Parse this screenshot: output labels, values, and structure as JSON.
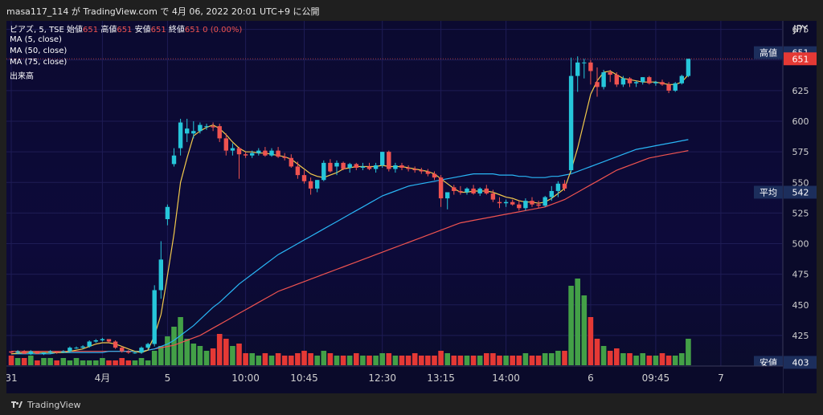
{
  "header": {
    "title": "masa117_114 が TradingView.com で 4月 06, 2022 20:01 UTC+9 に公開"
  },
  "legend": {
    "symbol": "ピアズ, 5, TSE",
    "open_label": "始値",
    "open_value": "651",
    "high_label": "高値",
    "high_value": "651",
    "low_label": "安値",
    "low_value": "651",
    "close_label": "終値",
    "close_value": "651",
    "change": "0 (0.00%)",
    "ma5": "MA (5, close)",
    "ma50": "MA (50, close)",
    "ma75": "MA (75, close)",
    "volume": "出来高"
  },
  "footer": {
    "brand": "TradingView"
  },
  "colors": {
    "up": "#26c6da",
    "down": "#ef5350",
    "ma5": "#f2c94c",
    "ma50": "#29b6f6",
    "ma75": "#ef5350",
    "vol_up": "#43a047",
    "vol_down": "#e53935",
    "label_bg": "#1c2e5c"
  },
  "chart_data": {
    "type": "candlestick",
    "currency": "JPY",
    "y_ticks": [
      675,
      650,
      625,
      600,
      575,
      550,
      525,
      500,
      475,
      450,
      425
    ],
    "ylim": [
      400,
      682
    ],
    "x_ticks": [
      {
        "label": "31",
        "i": 0
      },
      {
        "label": "4月",
        "i": 14
      },
      {
        "label": "5",
        "i": 24
      },
      {
        "label": "10:00",
        "i": 36
      },
      {
        "label": "10:45",
        "i": 45
      },
      {
        "label": "12:30",
        "i": 57
      },
      {
        "label": "13:15",
        "i": 66
      },
      {
        "label": "14:00",
        "i": 76
      },
      {
        "label": "6",
        "i": 89
      },
      {
        "label": "09:45",
        "i": 99
      },
      {
        "label": "7",
        "i": 109
      }
    ],
    "price_labels": [
      {
        "name": "高値",
        "value": "651",
        "price": 656
      },
      {
        "name": "",
        "value": "651",
        "price": 651
      },
      {
        "name": "平均",
        "value": "542",
        "price": 542
      },
      {
        "name": "安値",
        "value": "403",
        "price": 403
      }
    ],
    "candles": [
      [
        412,
        411,
        410,
        411
      ],
      [
        411,
        413,
        410,
        412
      ],
      [
        412,
        413,
        410,
        410
      ],
      [
        410,
        413,
        409,
        412
      ],
      [
        412,
        412,
        410,
        410
      ],
      [
        410,
        411,
        409,
        411
      ],
      [
        411,
        413,
        410,
        412
      ],
      [
        412,
        412,
        410,
        411
      ],
      [
        411,
        413,
        411,
        412
      ],
      [
        412,
        416,
        411,
        415
      ],
      [
        415,
        416,
        414,
        415
      ],
      [
        415,
        417,
        414,
        416
      ],
      [
        416,
        421,
        415,
        420
      ],
      [
        420,
        422,
        419,
        421
      ],
      [
        421,
        423,
        420,
        422
      ],
      [
        422,
        422,
        419,
        420
      ],
      [
        420,
        421,
        414,
        415
      ],
      [
        415,
        416,
        411,
        412
      ],
      [
        412,
        413,
        410,
        411
      ],
      [
        411,
        412,
        410,
        411
      ],
      [
        411,
        416,
        410,
        415
      ],
      [
        415,
        419,
        414,
        418
      ],
      [
        418,
        466,
        416,
        462
      ],
      [
        462,
        502,
        455,
        487
      ],
      [
        520,
        532,
        515,
        530
      ],
      [
        565,
        578,
        563,
        572
      ],
      [
        578,
        602,
        572,
        599
      ],
      [
        590,
        602,
        583,
        594
      ],
      [
        590,
        600,
        586,
        592
      ],
      [
        592,
        599,
        590,
        597
      ],
      [
        596,
        598,
        593,
        596
      ],
      [
        596,
        599,
        592,
        595
      ],
      [
        596,
        598,
        583,
        586
      ],
      [
        586,
        590,
        572,
        576
      ],
      [
        576,
        582,
        572,
        578
      ],
      [
        578,
        579,
        553,
        573
      ],
      [
        573,
        575,
        570,
        572
      ],
      [
        572,
        576,
        570,
        574
      ],
      [
        574,
        578,
        572,
        576
      ],
      [
        576,
        579,
        571,
        572
      ],
      [
        572,
        578,
        571,
        576
      ],
      [
        576,
        579,
        570,
        571
      ],
      [
        571,
        574,
        568,
        570
      ],
      [
        570,
        573,
        562,
        563
      ],
      [
        563,
        567,
        553,
        556
      ],
      [
        556,
        560,
        549,
        551
      ],
      [
        551,
        554,
        540,
        545
      ],
      [
        545,
        552,
        542,
        552
      ],
      [
        552,
        568,
        551,
        566
      ],
      [
        566,
        569,
        558,
        559
      ],
      [
        563,
        568,
        556,
        566
      ],
      [
        566,
        567,
        560,
        561
      ],
      [
        562,
        566,
        558,
        565
      ],
      [
        565,
        566,
        560,
        562
      ],
      [
        562,
        566,
        560,
        563
      ],
      [
        563,
        566,
        560,
        561
      ],
      [
        561,
        566,
        558,
        564
      ],
      [
        564,
        575,
        562,
        575
      ],
      [
        575,
        576,
        559,
        561
      ],
      [
        561,
        566,
        558,
        564
      ],
      [
        564,
        566,
        560,
        562
      ],
      [
        562,
        564,
        559,
        561
      ],
      [
        561,
        563,
        558,
        560
      ],
      [
        560,
        562,
        557,
        559
      ],
      [
        559,
        561,
        555,
        557
      ],
      [
        557,
        559,
        552,
        554
      ],
      [
        554,
        556,
        530,
        537
      ],
      [
        537,
        540,
        528,
        542
      ],
      [
        546,
        548,
        540,
        543
      ],
      [
        543,
        547,
        540,
        542
      ],
      [
        542,
        546,
        540,
        545
      ],
      [
        545,
        548,
        540,
        541
      ],
      [
        541,
        546,
        539,
        545
      ],
      [
        545,
        548,
        540,
        541
      ],
      [
        541,
        544,
        534,
        536
      ],
      [
        534,
        538,
        529,
        533
      ],
      [
        533,
        536,
        530,
        534
      ],
      [
        534,
        536,
        531,
        532
      ],
      [
        532,
        535,
        527,
        529
      ],
      [
        529,
        537,
        527,
        535
      ],
      [
        535,
        538,
        530,
        532
      ],
      [
        532,
        535,
        529,
        531
      ],
      [
        531,
        539,
        530,
        538
      ],
      [
        538,
        547,
        535,
        543
      ],
      [
        543,
        551,
        538,
        549
      ],
      [
        549,
        552,
        543,
        545
      ],
      [
        560,
        652,
        558,
        637
      ],
      [
        637,
        653,
        624,
        648
      ],
      [
        648,
        651,
        635,
        648
      ],
      [
        648,
        650,
        630,
        641
      ],
      [
        632,
        644,
        620,
        628
      ],
      [
        628,
        642,
        626,
        640
      ],
      [
        640,
        642,
        632,
        638
      ],
      [
        638,
        640,
        628,
        630
      ],
      [
        630,
        637,
        628,
        635
      ],
      [
        635,
        636,
        628,
        631
      ],
      [
        631,
        633,
        628,
        632
      ],
      [
        632,
        636,
        630,
        636
      ],
      [
        636,
        637,
        630,
        631
      ],
      [
        631,
        633,
        629,
        632
      ],
      [
        632,
        634,
        629,
        630
      ],
      [
        630,
        632,
        623,
        625
      ],
      [
        625,
        632,
        624,
        631
      ],
      [
        631,
        638,
        630,
        637
      ],
      [
        637,
        651,
        636,
        651
      ]
    ],
    "volumes": [
      4,
      3,
      3,
      4,
      2,
      3,
      3,
      2,
      3,
      2,
      3,
      2,
      2,
      2,
      3,
      2,
      2,
      3,
      2,
      2,
      3,
      2,
      6,
      8,
      12,
      16,
      20,
      11,
      9,
      8,
      6,
      7,
      13,
      11,
      8,
      9,
      5,
      5,
      4,
      5,
      4,
      5,
      4,
      4,
      5,
      6,
      5,
      4,
      6,
      5,
      4,
      4,
      4,
      5,
      4,
      4,
      4,
      5,
      5,
      4,
      4,
      4,
      5,
      4,
      4,
      4,
      6,
      5,
      4,
      4,
      4,
      4,
      4,
      5,
      5,
      4,
      4,
      4,
      4,
      5,
      4,
      4,
      5,
      5,
      6,
      6,
      33,
      36,
      29,
      20,
      11,
      8,
      6,
      7,
      5,
      5,
      4,
      5,
      4,
      4,
      5,
      4,
      4,
      5,
      11
    ],
    "ma5": [
      410,
      410.5,
      411,
      411,
      411,
      411,
      411,
      411,
      411,
      412,
      413,
      414,
      416,
      418,
      419,
      419,
      418,
      416,
      414,
      412,
      411,
      413,
      425,
      442,
      474,
      508,
      550,
      570,
      588,
      592,
      595,
      597,
      594,
      589,
      583,
      578,
      575,
      575,
      574,
      574,
      573,
      572,
      571,
      569,
      565,
      561,
      557,
      555,
      554,
      556,
      558,
      561,
      562,
      563,
      563,
      563,
      563,
      564,
      563,
      563,
      563,
      562,
      561,
      560,
      559,
      557,
      553,
      549,
      545,
      542,
      542,
      543,
      543,
      543,
      542,
      540,
      538,
      537,
      535,
      534,
      534,
      533,
      534,
      537,
      541,
      545,
      560,
      578,
      600,
      622,
      633,
      640,
      641,
      638,
      635,
      634,
      633,
      632,
      632,
      632,
      631,
      630,
      630,
      632,
      638
    ],
    "ma50": [
      410,
      410,
      410,
      410,
      410,
      410,
      410,
      411,
      411,
      411,
      411,
      411,
      411,
      411,
      411,
      412,
      412,
      412,
      412,
      412,
      412,
      413,
      414,
      416,
      418,
      421,
      425,
      429,
      433,
      438,
      443,
      448,
      452,
      457,
      462,
      467,
      471,
      475,
      479,
      483,
      487,
      491,
      494,
      497,
      500,
      503,
      506,
      509,
      512,
      515,
      518,
      521,
      524,
      527,
      530,
      533,
      536,
      539,
      541,
      543,
      545,
      547,
      548,
      549,
      550,
      551,
      552,
      553,
      554,
      555,
      556,
      557,
      557,
      557,
      557,
      556,
      556,
      556,
      555,
      555,
      554,
      554,
      554,
      555,
      555,
      556,
      557,
      559,
      561,
      563,
      565,
      567,
      569,
      571,
      573,
      575,
      577,
      578,
      579,
      580,
      581,
      582,
      583,
      584,
      585
    ],
    "ma75": [
      412,
      412,
      412,
      412,
      412,
      412,
      412,
      412,
      412,
      412,
      412,
      412,
      412,
      412,
      412,
      412,
      412,
      412,
      412,
      412,
      412,
      413,
      414,
      415,
      416,
      417,
      419,
      421,
      423,
      425,
      428,
      431,
      434,
      437,
      440,
      443,
      446,
      449,
      452,
      455,
      458,
      461,
      463,
      465,
      467,
      469,
      471,
      473,
      475,
      477,
      479,
      481,
      483,
      485,
      487,
      489,
      491,
      493,
      495,
      497,
      499,
      501,
      503,
      505,
      507,
      509,
      511,
      513,
      515,
      517,
      518,
      519,
      520,
      521,
      522,
      523,
      524,
      525,
      526,
      527,
      528,
      529,
      530,
      532,
      534,
      536,
      539,
      542,
      545,
      548,
      551,
      554,
      557,
      560,
      562,
      564,
      566,
      568,
      570,
      571,
      572,
      573,
      574,
      575,
      576
    ]
  }
}
